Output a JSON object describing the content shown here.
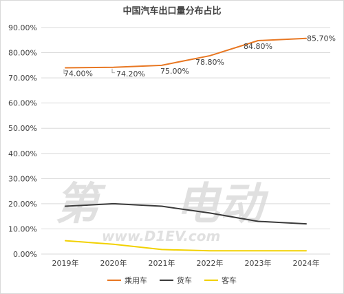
{
  "chart_data": {
    "type": "line",
    "title": "中国汽车出口量分布占比",
    "categories": [
      "2019年",
      "2020年",
      "2021年",
      "2022年",
      "2023年",
      "2024年"
    ],
    "y_ticks": [
      "0.00%",
      "10.00%",
      "20.00%",
      "30.00%",
      "40.00%",
      "50.00%",
      "60.00%",
      "70.00%",
      "80.00%",
      "90.00%"
    ],
    "ylim": [
      0,
      90
    ],
    "grid": "horizontal",
    "legend_position": "bottom",
    "series": [
      {
        "name": "乘用车",
        "color": "#e87722",
        "values": [
          74.0,
          74.2,
          75.0,
          78.8,
          84.8,
          85.7
        ],
        "labels": [
          "74.00%",
          "74.20%",
          "75.00%",
          "78.80%",
          "84.80%",
          "85.70%"
        ]
      },
      {
        "name": "货车",
        "color": "#3a3a3a",
        "values": [
          19.0,
          20.0,
          19.0,
          16.3,
          13.0,
          12.0
        ]
      },
      {
        "name": "客车",
        "color": "#f2d100",
        "values": [
          5.3,
          3.9,
          1.8,
          1.3,
          1.3,
          1.3
        ]
      }
    ]
  },
  "watermark": {
    "left": "第",
    "right": "电动",
    "url": "www.D1EV.com"
  }
}
